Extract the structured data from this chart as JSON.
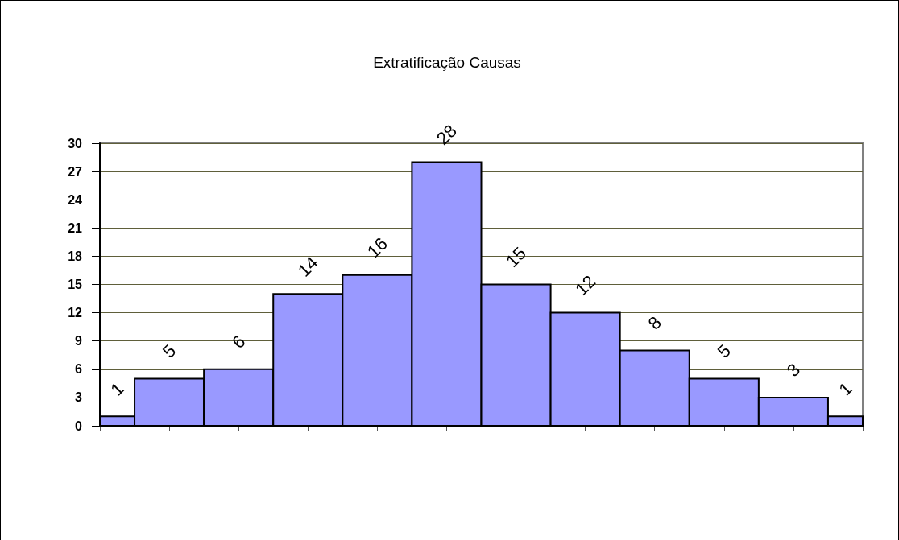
{
  "chart_data": {
    "type": "bar",
    "title": "Extratificação Causas",
    "categories": [
      null,
      null,
      null,
      null,
      null,
      null,
      null,
      null,
      null,
      null,
      null,
      null
    ],
    "values": [
      1,
      5,
      6,
      14,
      16,
      28,
      15,
      12,
      8,
      5,
      3,
      1
    ],
    "color": "#9999ff",
    "ylim": [
      0,
      30
    ],
    "yticks": [
      0,
      3,
      6,
      9,
      12,
      15,
      18,
      21,
      24,
      27,
      30
    ],
    "grid": "y",
    "data_labels": true,
    "tick_labels": "y"
  }
}
